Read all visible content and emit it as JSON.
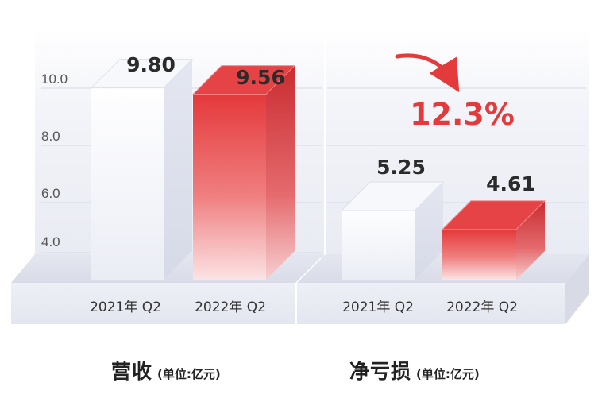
{
  "colors": {
    "red_accent": "#e33b3b",
    "value_text": "#2b2b2b",
    "axis_text": "#555555",
    "panel_bg": "#eef0f7"
  },
  "chart_data": [
    {
      "type": "bar",
      "title": "营收",
      "unit": "(单位:亿元)",
      "categories": [
        "2021年 Q2",
        "2022年 Q2"
      ],
      "values": [
        9.8,
        9.56
      ],
      "value_labels": [
        "9.80",
        "9.56"
      ],
      "y_ticks": [
        "10.0",
        "8.0",
        "6.0",
        "4.0"
      ],
      "grid": true
    },
    {
      "type": "bar",
      "title": "净亏损",
      "unit": "(单位:亿元)",
      "categories": [
        "2021年 Q2",
        "2022年 Q2"
      ],
      "values": [
        5.25,
        4.61
      ],
      "value_labels": [
        "5.25",
        "4.61"
      ],
      "annotation": "12.3%",
      "grid": true
    }
  ]
}
